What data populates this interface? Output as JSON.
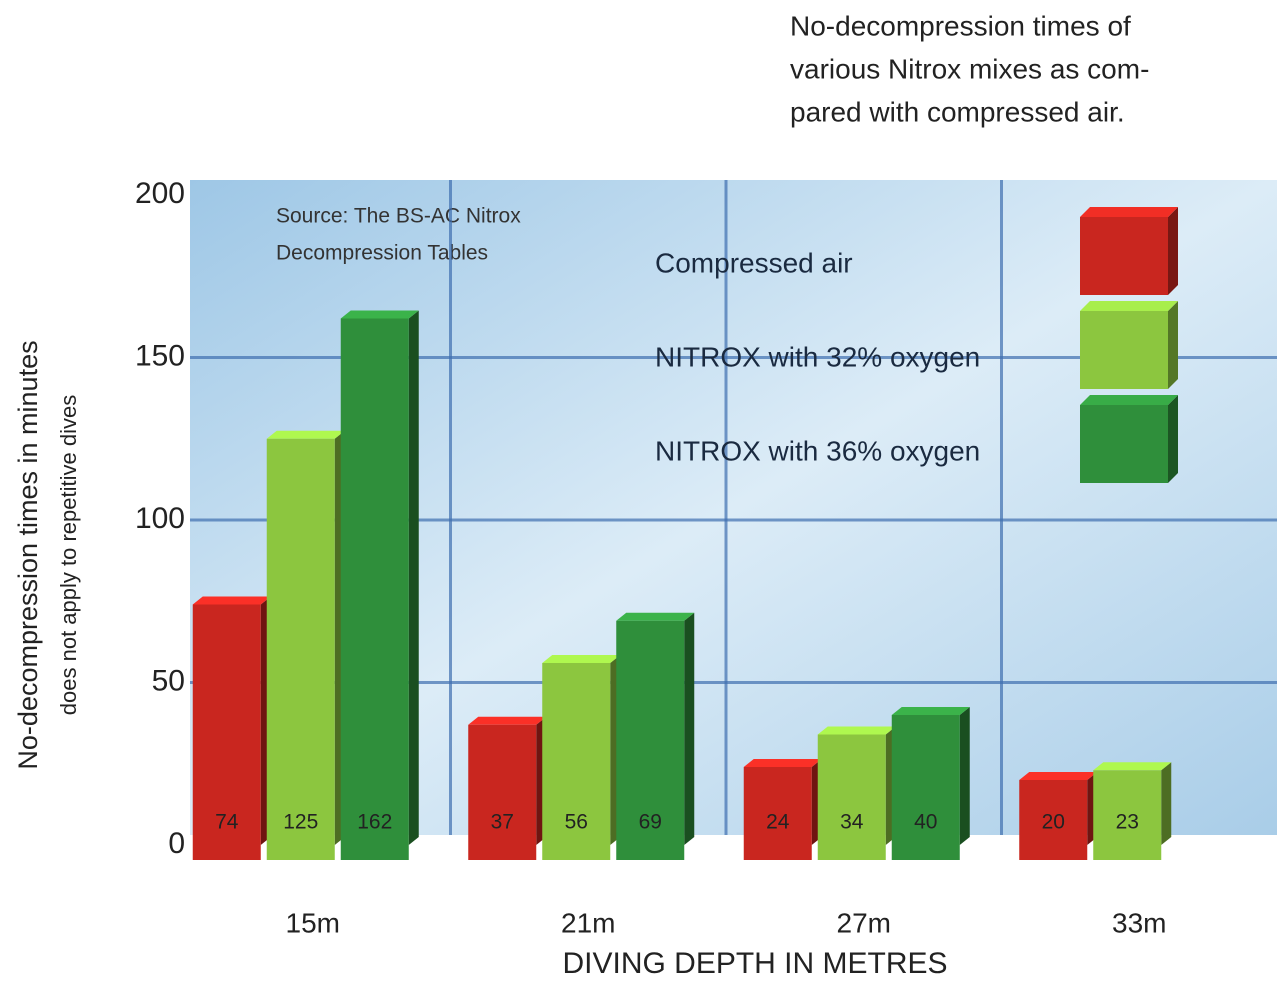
{
  "chart_data": {
    "type": "bar",
    "title_lines": [
      "No-decompression times of",
      "various Nitrox mixes as com-",
      "pared with compressed air."
    ],
    "ylabel": "No-decompression times in minutes",
    "ylabel_note": "does not apply to repetitive dives",
    "xlabel": "DIVING DEPTH IN METRES",
    "source_lines": [
      "Source: The BS-AC Nitrox",
      "Decompression Tables"
    ],
    "categories": [
      "15m",
      "21m",
      "27m",
      "33m"
    ],
    "series": [
      {
        "name": "Compressed air",
        "color": "#c9261f",
        "values": [
          74,
          37,
          24,
          20
        ]
      },
      {
        "name": "NITROX with 32% oxygen",
        "color": "#8cc63f",
        "values": [
          125,
          56,
          34,
          23
        ]
      },
      {
        "name": "NITROX with 36% oxygen",
        "color": "#2f8f3b",
        "values": [
          162,
          69,
          40,
          null
        ]
      }
    ],
    "ylim": [
      0,
      200
    ],
    "yticks": [
      0,
      50,
      100,
      150,
      200
    ],
    "grid": true,
    "legend": "top-right"
  }
}
